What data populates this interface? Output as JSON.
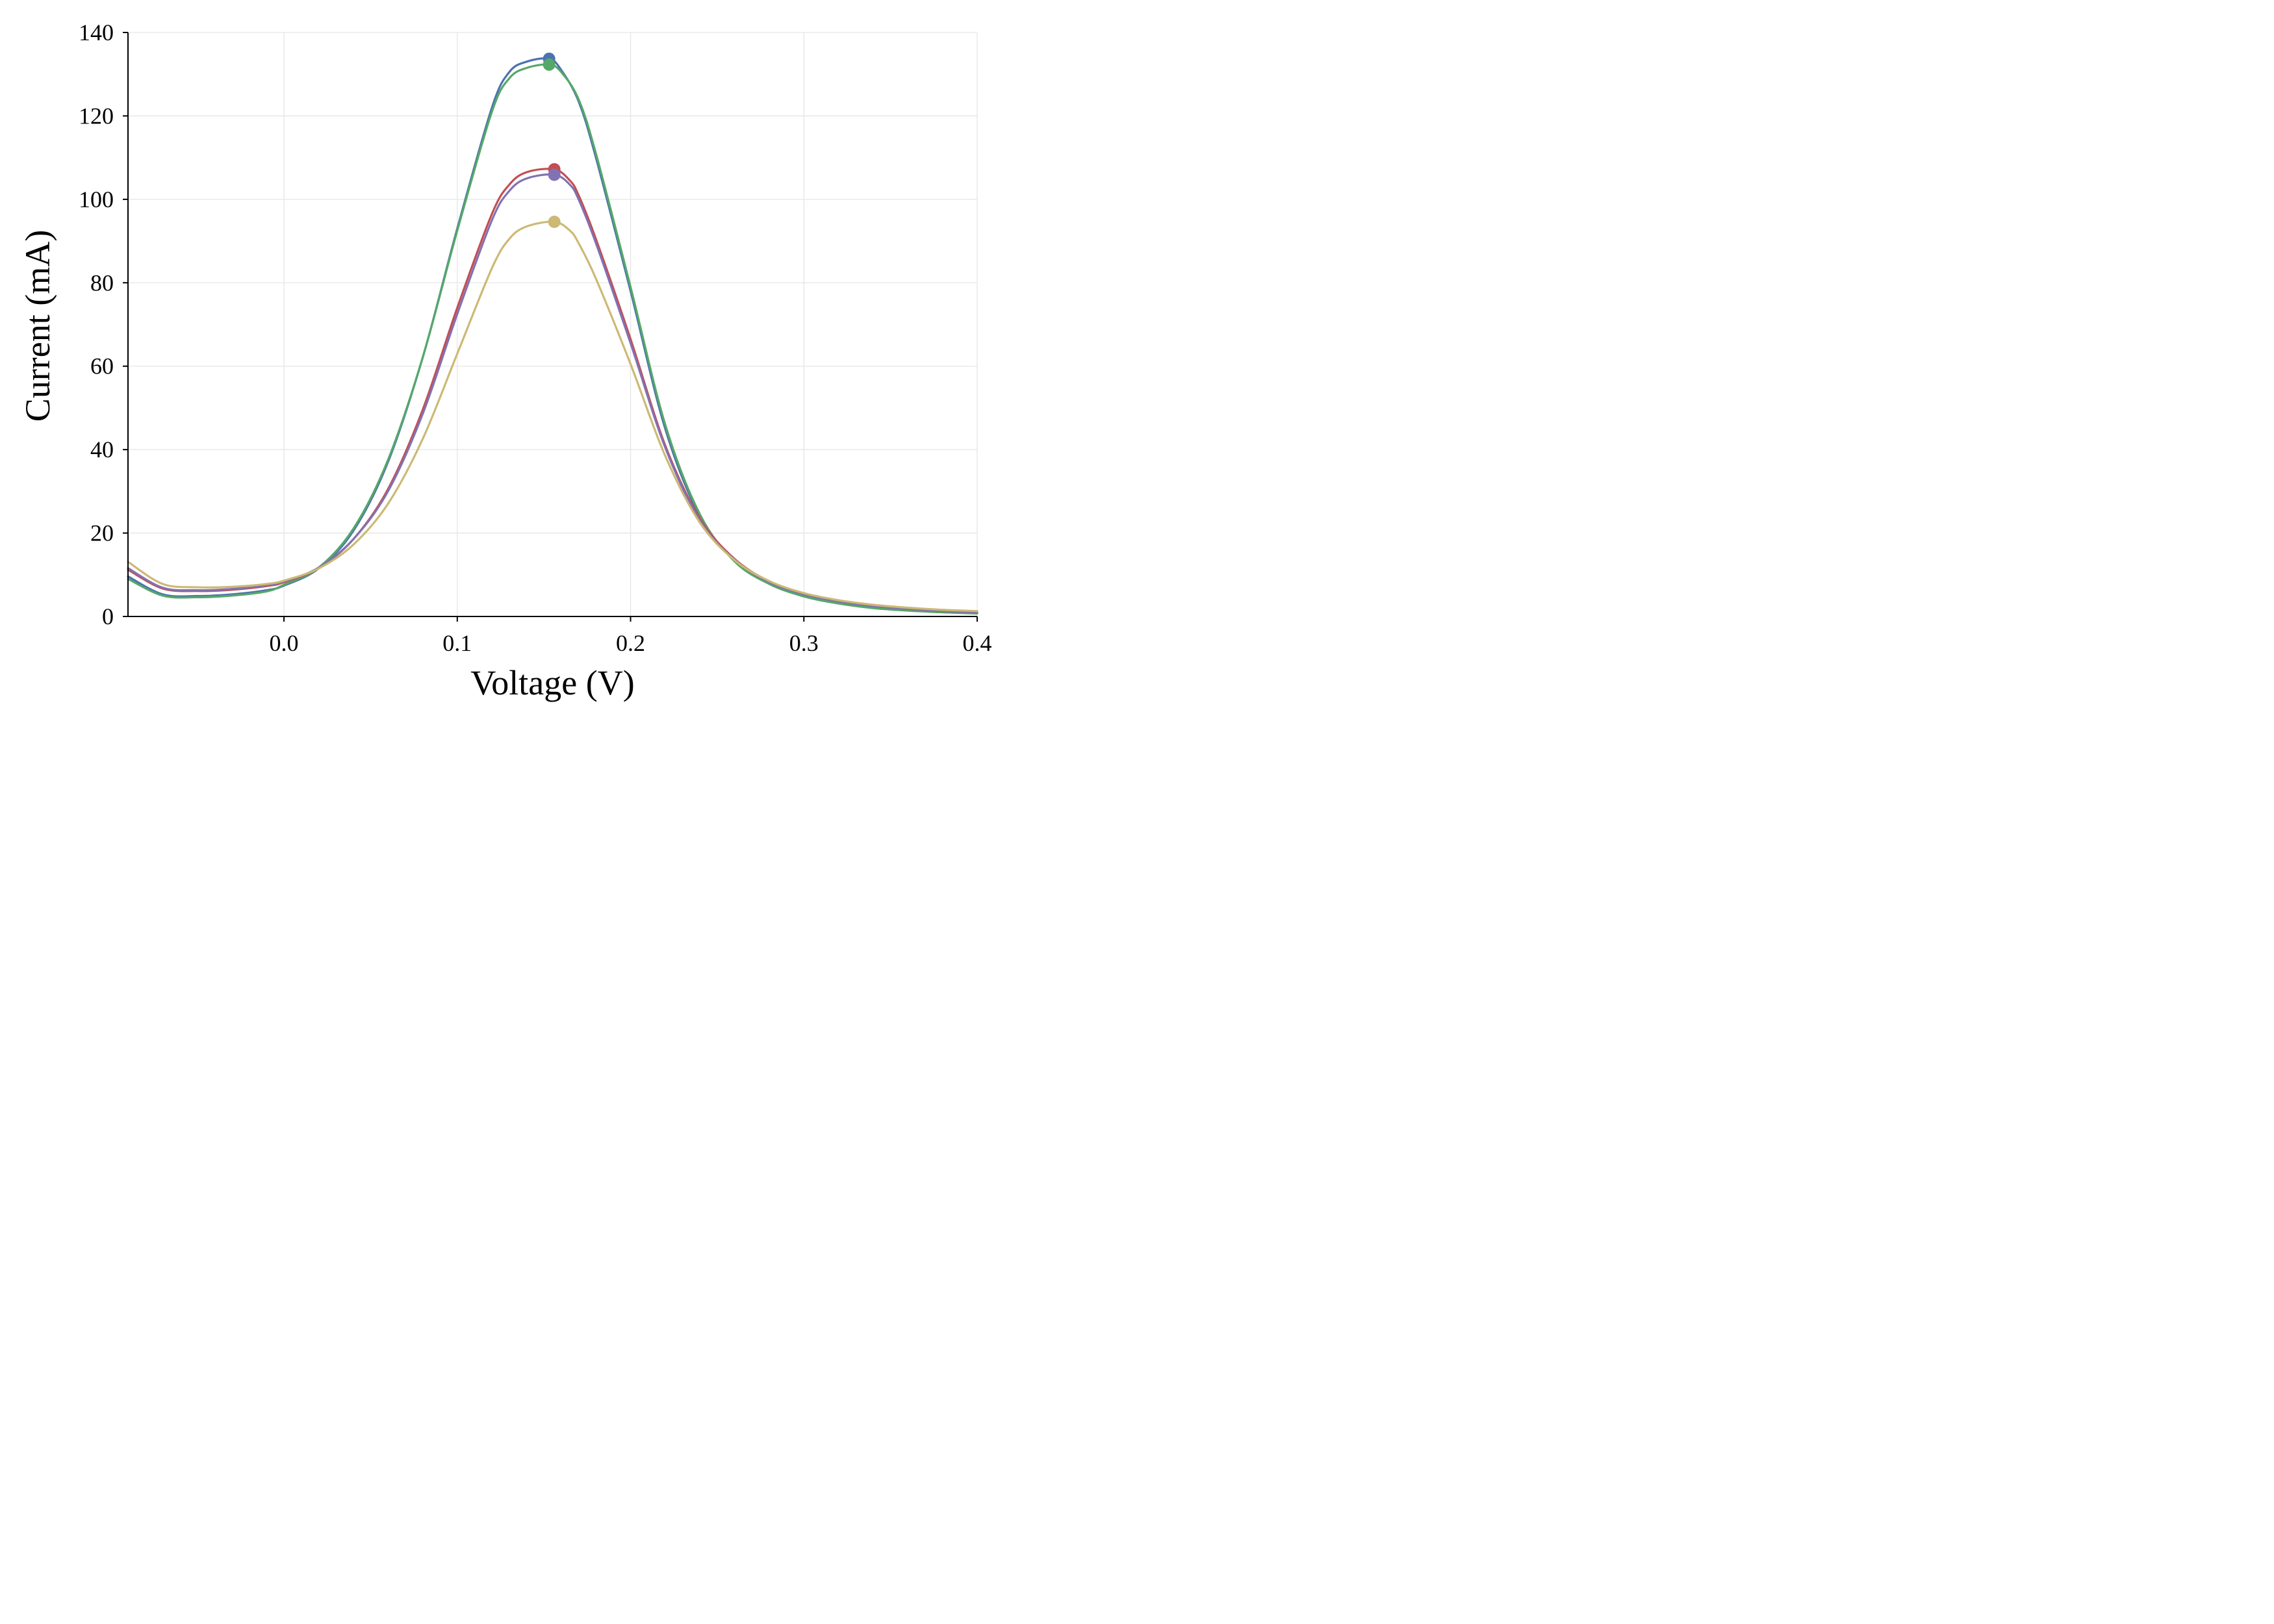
{
  "chart_data": {
    "type": "line",
    "title": "",
    "xlabel": "Voltage (V)",
    "ylabel": "Current (mA)",
    "xlim": [
      -0.09,
      0.4
    ],
    "ylim": [
      0,
      140
    ],
    "xticks": [
      0.0,
      0.1,
      0.2,
      0.3,
      0.4
    ],
    "xtick_labels": [
      "0.0",
      "0.1",
      "0.2",
      "0.3",
      "0.4"
    ],
    "yticks": [
      0,
      20,
      40,
      60,
      80,
      100,
      120,
      140
    ],
    "ytick_labels": [
      "0",
      "20",
      "40",
      "60",
      "80",
      "100",
      "120",
      "140"
    ],
    "grid": true,
    "legend": "none",
    "series": [
      {
        "color": "#4c72b0",
        "peak": [
          0.153,
          133.7
        ],
        "x": [
          -0.09,
          -0.07,
          -0.05,
          -0.03,
          -0.01,
          0.0,
          0.02,
          0.04,
          0.06,
          0.08,
          0.1,
          0.12,
          0.13,
          0.14,
          0.153,
          0.16,
          0.17,
          0.18,
          0.2,
          0.22,
          0.24,
          0.26,
          0.28,
          0.3,
          0.32,
          0.34,
          0.36,
          0.38,
          0.4
        ],
        "y": [
          9.6,
          5.3,
          4.9,
          5.3,
          6.3,
          7.4,
          11.5,
          20.5,
          37.0,
          62.0,
          93.0,
          122.0,
          130.5,
          133.0,
          133.7,
          131.0,
          123.5,
          110.0,
          78.0,
          45.0,
          24.0,
          13.5,
          8.0,
          5.0,
          3.2,
          2.1,
          1.5,
          1.0,
          0.8
        ]
      },
      {
        "color": "#55a868",
        "peak": [
          0.153,
          132.3
        ],
        "x": [
          -0.09,
          -0.07,
          -0.05,
          -0.03,
          -0.01,
          0.0,
          0.02,
          0.04,
          0.06,
          0.08,
          0.1,
          0.12,
          0.13,
          0.14,
          0.153,
          0.16,
          0.17,
          0.18,
          0.2,
          0.22,
          0.24,
          0.26,
          0.28,
          0.3,
          0.32,
          0.34,
          0.36,
          0.38,
          0.4
        ],
        "y": [
          9.0,
          5.0,
          4.6,
          5.0,
          6.0,
          7.6,
          11.7,
          21.0,
          37.5,
          62.0,
          92.5,
          121.0,
          129.0,
          131.5,
          132.3,
          130.5,
          124.0,
          111.0,
          79.0,
          46.0,
          24.5,
          13.2,
          7.8,
          4.8,
          3.1,
          2.0,
          1.4,
          1.0,
          0.7
        ]
      },
      {
        "color": "#c44e52",
        "peak": [
          0.156,
          107.2
        ],
        "x": [
          -0.09,
          -0.07,
          -0.05,
          -0.03,
          -0.01,
          0.0,
          0.02,
          0.04,
          0.06,
          0.08,
          0.1,
          0.12,
          0.13,
          0.14,
          0.156,
          0.165,
          0.17,
          0.18,
          0.2,
          0.22,
          0.24,
          0.26,
          0.28,
          0.3,
          0.32,
          0.34,
          0.36,
          0.38,
          0.4
        ],
        "y": [
          11.2,
          6.7,
          6.1,
          6.4,
          7.3,
          8.2,
          11.6,
          18.5,
          30.5,
          49.5,
          74.0,
          96.5,
          103.5,
          106.5,
          107.2,
          104.5,
          101.0,
          90.5,
          66.5,
          41.0,
          23.5,
          13.8,
          8.4,
          5.4,
          3.6,
          2.5,
          1.8,
          1.3,
          1.0
        ]
      },
      {
        "color": "#8172b2",
        "peak": [
          0.156,
          105.9
        ],
        "x": [
          -0.09,
          -0.07,
          -0.05,
          -0.03,
          -0.01,
          0.0,
          0.02,
          0.04,
          0.06,
          0.08,
          0.1,
          0.12,
          0.13,
          0.14,
          0.156,
          0.165,
          0.17,
          0.18,
          0.2,
          0.22,
          0.24,
          0.26,
          0.28,
          0.3,
          0.32,
          0.34,
          0.36,
          0.38,
          0.4
        ],
        "y": [
          11.6,
          6.9,
          6.3,
          6.6,
          7.5,
          8.4,
          11.7,
          18.5,
          30.0,
          48.5,
          72.5,
          95.0,
          102.0,
          105.0,
          105.9,
          103.5,
          100.0,
          89.5,
          65.5,
          40.5,
          23.0,
          13.6,
          8.2,
          5.3,
          3.6,
          2.5,
          1.8,
          1.3,
          1.0
        ]
      },
      {
        "color": "#ccb974",
        "peak": [
          0.156,
          94.6
        ],
        "x": [
          -0.09,
          -0.07,
          -0.05,
          -0.03,
          -0.01,
          0.0,
          0.02,
          0.04,
          0.06,
          0.08,
          0.1,
          0.12,
          0.13,
          0.14,
          0.156,
          0.165,
          0.17,
          0.18,
          0.2,
          0.22,
          0.24,
          0.26,
          0.28,
          0.3,
          0.32,
          0.34,
          0.36,
          0.38,
          0.4
        ],
        "y": [
          13.1,
          7.8,
          7.0,
          7.1,
          7.8,
          8.6,
          11.5,
          17.2,
          27.0,
          42.5,
          63.0,
          83.5,
          90.5,
          93.5,
          94.6,
          92.5,
          89.5,
          81.0,
          60.5,
          38.5,
          22.5,
          13.5,
          8.5,
          5.6,
          3.9,
          2.8,
          2.1,
          1.6,
          1.3
        ]
      }
    ]
  }
}
